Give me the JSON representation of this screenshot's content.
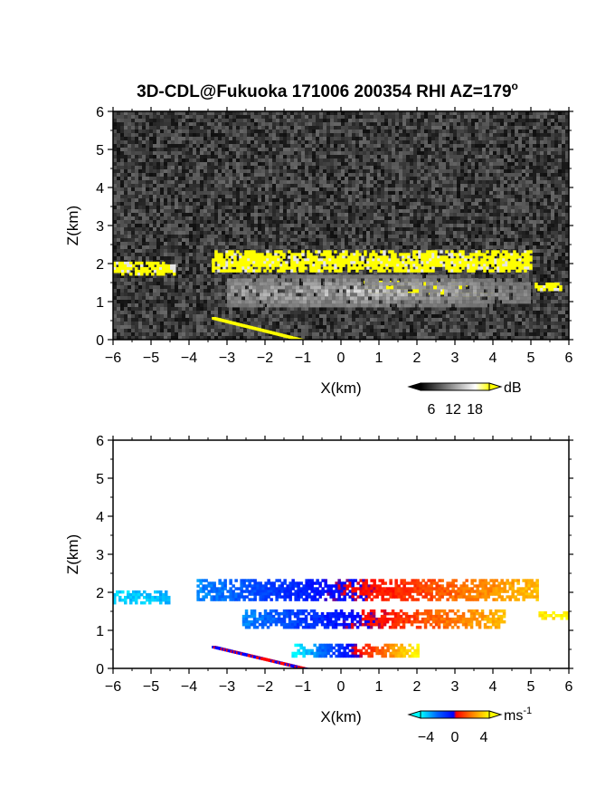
{
  "title": "3D-CDL@Fukuoka 171006 200354 RHI AZ=179",
  "title_sup": "o",
  "chart_data": [
    {
      "type": "heatmap",
      "name": "backscatter",
      "xlabel": "X(km)",
      "ylabel": "Z(km)",
      "xlim": [
        -6,
        6
      ],
      "ylim": [
        0,
        6
      ],
      "x_ticks": [
        -6,
        -5,
        -4,
        -3,
        -2,
        -1,
        0,
        1,
        2,
        3,
        4,
        5,
        6
      ],
      "y_ticks": [
        0,
        1,
        2,
        3,
        4,
        5,
        6
      ],
      "background": "noise",
      "colorbar": {
        "unit": "dB",
        "ticks": [
          6,
          12,
          18
        ],
        "colors": [
          "#000000",
          "#ffffff",
          "#ffff00"
        ]
      },
      "layers": [
        {
          "x": [
            -6,
            -4.4
          ],
          "z": [
            1.75,
            2.05
          ],
          "db": 20
        },
        {
          "x": [
            -3.4,
            5.0
          ],
          "z": [
            1.8,
            2.35
          ],
          "db": 20
        },
        {
          "x": [
            0.6,
            2.7
          ],
          "z": [
            1.2,
            1.55
          ],
          "db": 20
        },
        {
          "x": [
            2.9,
            3.3
          ],
          "z": [
            1.4,
            1.55
          ],
          "db": 20
        },
        {
          "x": [
            3.0,
            4.0
          ],
          "z": [
            1.15,
            1.3
          ],
          "db": 20
        },
        {
          "x": [
            5.1,
            5.8
          ],
          "z": [
            1.35,
            1.5
          ],
          "db": 20
        },
        {
          "x": [
            -3.4,
            -1.0
          ],
          "z": [
            0.0,
            0.55
          ],
          "db": 20
        },
        {
          "x": [
            -3.0,
            5.0
          ],
          "z": [
            0.8,
            1.8
          ],
          "db": 10
        }
      ]
    },
    {
      "type": "heatmap",
      "name": "doppler-velocity",
      "xlabel": "X(km)",
      "ylabel": "Z(km)",
      "xlim": [
        -6,
        6
      ],
      "ylim": [
        0,
        6
      ],
      "x_ticks": [
        -6,
        -5,
        -4,
        -3,
        -2,
        -1,
        0,
        1,
        2,
        3,
        4,
        5,
        6
      ],
      "y_ticks": [
        0,
        1,
        2,
        3,
        4,
        5,
        6
      ],
      "colorbar": {
        "unit": "ms",
        "unit_sup": "-1",
        "ticks": [
          -4,
          0,
          4
        ],
        "colors": [
          "#00ffff",
          "#0000ff",
          "#ff0000",
          "#ffff00"
        ]
      },
      "layers": [
        {
          "x": [
            -6,
            -4.5
          ],
          "z": [
            1.75,
            2.05
          ],
          "v_range": [
            -3.5,
            -3.0
          ]
        },
        {
          "x": [
            -3.8,
            5.2
          ],
          "z": [
            1.8,
            2.35
          ],
          "v_range": [
            -2.5,
            3.0
          ]
        },
        {
          "x": [
            -2.6,
            4.3
          ],
          "z": [
            1.1,
            1.55
          ],
          "v_range": [
            -2.5,
            3.0
          ]
        },
        {
          "x": [
            5.2,
            6.0
          ],
          "z": [
            1.35,
            1.5
          ],
          "v_range": [
            3.5,
            4.0
          ]
        },
        {
          "x": [
            -1.3,
            2.0
          ],
          "z": [
            0.3,
            0.65
          ],
          "v_range": [
            -4.0,
            4.0
          ]
        },
        {
          "x": [
            -3.4,
            -0.9
          ],
          "z": [
            0.0,
            0.55
          ],
          "v_range": [
            -2.0,
            2.0
          ]
        }
      ]
    }
  ]
}
